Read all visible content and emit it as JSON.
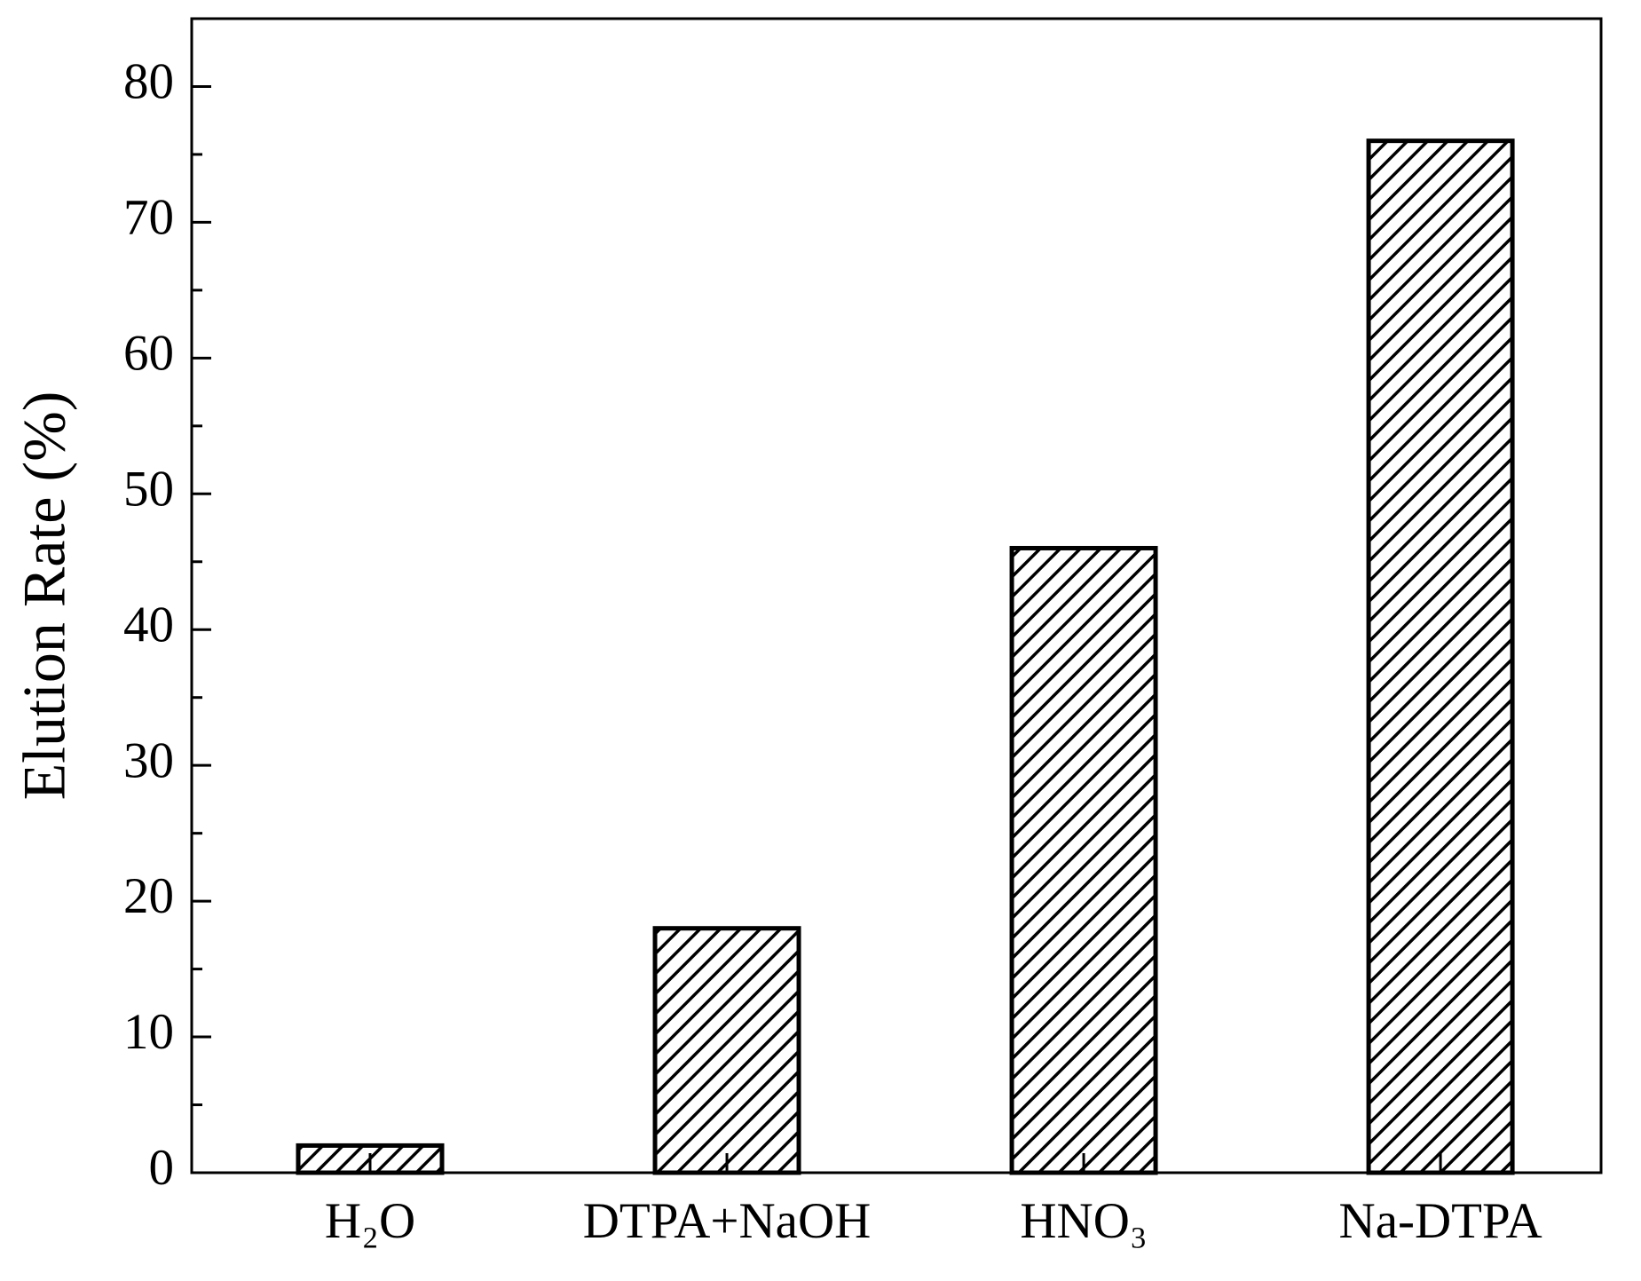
{
  "chart_data": {
    "type": "bar",
    "y_label": "Elution Rate (%)",
    "categories": [
      "H₂O",
      "DTPA+NaOH",
      "HNO₃",
      "Na-DTPA"
    ],
    "values": [
      2,
      18,
      46,
      76
    ],
    "color": "#000000",
    "hatch": true,
    "ylim": [
      0,
      85
    ],
    "yticks": [
      0,
      10,
      20,
      30,
      40,
      50,
      60,
      70,
      80
    ],
    "yticks_minor": [
      5,
      15,
      25,
      35,
      45,
      55,
      65,
      75,
      85
    ],
    "grid": false
  }
}
